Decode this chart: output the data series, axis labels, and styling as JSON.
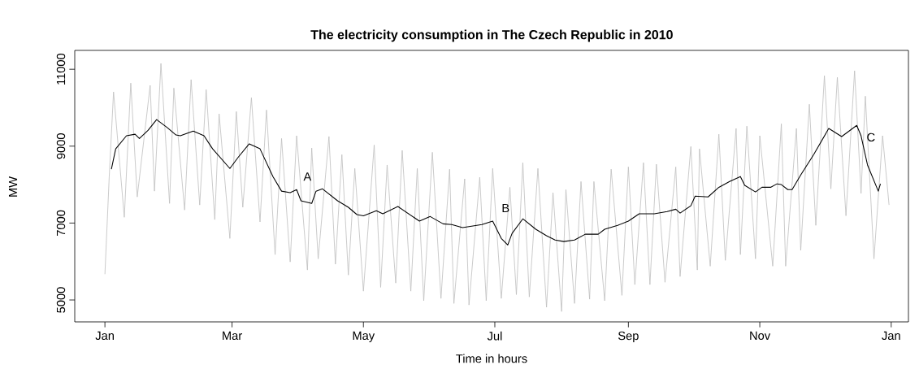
{
  "chart_data": {
    "type": "line",
    "title": "The electricity consumption in The Czech Republic in 2010",
    "xlabel": "Time in hours",
    "ylabel": "MW",
    "xlim": [
      "2009-12-18",
      "2011-01-09"
    ],
    "ylim": [
      4430,
      11490
    ],
    "xticks": [
      {
        "value": "2010-01-01",
        "label": "Jan"
      },
      {
        "value": "2010-03-01",
        "label": "Mar"
      },
      {
        "value": "2010-05-01",
        "label": "May"
      },
      {
        "value": "2010-07-01",
        "label": "Jul"
      },
      {
        "value": "2010-09-01",
        "label": "Sep"
      },
      {
        "value": "2010-11-01",
        "label": "Nov"
      },
      {
        "value": "2011-01-01",
        "label": "Jan"
      }
    ],
    "yticks": [
      5000,
      7000,
      9000,
      11000
    ],
    "series": [
      {
        "color": "#bebebe",
        "x": [
          "2010-01-01",
          "2010-01-03",
          "2010-01-05",
          "2010-01-10",
          "2010-01-13",
          "2010-01-16",
          "2010-01-22",
          "2010-01-24",
          "2010-01-27",
          "2010-01-31",
          "2010-02-02",
          "2010-02-07",
          "2010-02-10",
          "2010-02-14",
          "2010-02-17",
          "2010-02-21",
          "2010-02-23",
          "2010-02-28",
          "2010-03-03",
          "2010-03-06",
          "2010-03-10",
          "2010-03-14",
          "2010-03-17",
          "2010-03-21",
          "2010-03-24",
          "2010-03-28",
          "2010-03-31",
          "2010-04-05",
          "2010-04-07",
          "2010-04-10",
          "2010-04-15",
          "2010-04-18",
          "2010-04-21",
          "2010-04-24",
          "2010-04-27",
          "2010-05-01",
          "2010-05-06",
          "2010-05-09",
          "2010-05-12",
          "2010-05-16",
          "2010-05-19",
          "2010-05-23",
          "2010-05-26",
          "2010-05-29",
          "2010-06-02",
          "2010-06-06",
          "2010-06-10",
          "2010-06-12",
          "2010-06-17",
          "2010-06-19",
          "2010-06-24",
          "2010-06-27",
          "2010-06-30",
          "2010-07-04",
          "2010-07-08",
          "2010-07-11",
          "2010-07-14",
          "2010-07-17",
          "2010-07-21",
          "2010-07-25",
          "2010-07-28",
          "2010-08-01",
          "2010-08-03",
          "2010-08-07",
          "2010-08-10",
          "2010-08-14",
          "2010-08-16",
          "2010-08-21",
          "2010-08-24",
          "2010-08-29",
          "2010-09-01",
          "2010-09-04",
          "2010-09-08",
          "2010-09-11",
          "2010-09-14",
          "2010-09-18",
          "2010-09-23",
          "2010-09-25",
          "2010-09-30",
          "2010-10-03",
          "2010-10-04",
          "2010-10-09",
          "2010-10-13",
          "2010-10-16",
          "2010-10-21",
          "2010-10-23",
          "2010-10-26",
          "2010-10-30",
          "2010-11-01",
          "2010-11-07",
          "2010-11-11",
          "2010-11-13",
          "2010-11-18",
          "2010-11-20",
          "2010-11-24",
          "2010-11-27",
          "2010-12-01",
          "2010-12-04",
          "2010-12-07",
          "2010-12-11",
          "2010-12-15",
          "2010-12-18",
          "2010-12-20",
          "2010-12-24",
          "2010-12-28",
          "2010-12-31"
        ],
        "values": [
          5670,
          8210,
          10410,
          7150,
          10640,
          7680,
          10580,
          7830,
          11150,
          7510,
          10510,
          7340,
          10730,
          7470,
          10470,
          7090,
          9840,
          6600,
          9900,
          7410,
          10260,
          7030,
          9940,
          6180,
          9200,
          5990,
          9270,
          5780,
          8950,
          6070,
          9250,
          5930,
          8780,
          5650,
          8420,
          5230,
          9030,
          5330,
          8510,
          5440,
          8890,
          5230,
          8420,
          4980,
          8840,
          5040,
          8400,
          4910,
          8150,
          4870,
          8190,
          4980,
          8420,
          5040,
          7930,
          5140,
          8570,
          5080,
          8420,
          4810,
          7790,
          4700,
          7870,
          4910,
          8080,
          5020,
          8080,
          4980,
          8400,
          5120,
          8460,
          5400,
          8570,
          5400,
          8530,
          5460,
          8460,
          5610,
          8990,
          5780,
          8930,
          5880,
          9310,
          6030,
          9460,
          6180,
          9520,
          6070,
          9270,
          5880,
          9580,
          5880,
          9460,
          6290,
          10090,
          6940,
          10830,
          7890,
          10790,
          7190,
          10960,
          7770,
          10300,
          6070,
          9270,
          7470
        ]
      },
      {
        "color": "#000000",
        "x": [
          "2010-01-04",
          "2010-01-06",
          "2010-01-11",
          "2010-01-15",
          "2010-01-17",
          "2010-01-21",
          "2010-01-25",
          "2010-01-30",
          "2010-02-03",
          "2010-02-05",
          "2010-02-11",
          "2010-02-16",
          "2010-02-20",
          "2010-02-28",
          "2010-03-04",
          "2010-03-09",
          "2010-03-14",
          "2010-03-20",
          "2010-03-24",
          "2010-03-28",
          "2010-03-31",
          "2010-04-02",
          "2010-04-07",
          "2010-04-09",
          "2010-04-12",
          "2010-04-19",
          "2010-04-24",
          "2010-04-28",
          "2010-05-01",
          "2010-05-07",
          "2010-05-10",
          "2010-05-17",
          "2010-05-27",
          "2010-06-01",
          "2010-06-07",
          "2010-06-11",
          "2010-06-16",
          "2010-06-25",
          "2010-06-30",
          "2010-07-04",
          "2010-07-07",
          "2010-07-09",
          "2010-07-14",
          "2010-07-20",
          "2010-07-25",
          "2010-07-29",
          "2010-08-02",
          "2010-08-07",
          "2010-08-12",
          "2010-08-18",
          "2010-08-21",
          "2010-08-27",
          "2010-09-01",
          "2010-09-06",
          "2010-09-11",
          "2010-09-13",
          "2010-09-19",
          "2010-09-23",
          "2010-09-25",
          "2010-09-30",
          "2010-10-02",
          "2010-10-08",
          "2010-10-13",
          "2010-10-18",
          "2010-10-23",
          "2010-10-25",
          "2010-10-30",
          "2010-11-02",
          "2010-11-06",
          "2010-11-09",
          "2010-11-11",
          "2010-11-14",
          "2010-11-16",
          "2010-11-20",
          "2010-11-26",
          "2010-12-03",
          "2010-12-09",
          "2010-12-16",
          "2010-12-18",
          "2010-12-21",
          "2010-12-26",
          "2010-12-27"
        ],
        "values": [
          8400,
          8930,
          9270,
          9310,
          9200,
          9410,
          9690,
          9480,
          9290,
          9270,
          9390,
          9270,
          8930,
          8420,
          8720,
          9060,
          8930,
          8210,
          7830,
          7790,
          7870,
          7580,
          7510,
          7830,
          7890,
          7580,
          7410,
          7220,
          7190,
          7320,
          7240,
          7430,
          7050,
          7170,
          6980,
          6960,
          6880,
          6960,
          7050,
          6600,
          6430,
          6730,
          7110,
          6840,
          6670,
          6560,
          6520,
          6560,
          6710,
          6710,
          6840,
          6940,
          7050,
          7240,
          7240,
          7240,
          7300,
          7360,
          7260,
          7450,
          7700,
          7680,
          7930,
          8080,
          8210,
          7980,
          7810,
          7930,
          7930,
          8020,
          8000,
          7870,
          7870,
          8250,
          8780,
          9460,
          9250,
          9540,
          9270,
          8510,
          7830,
          8020
        ]
      }
    ],
    "annotations": [
      {
        "text": "A",
        "x": "2010-04-05",
        "y": 8210
      },
      {
        "text": "B",
        "x": "2010-07-06",
        "y": 7390
      },
      "C"
    ]
  }
}
